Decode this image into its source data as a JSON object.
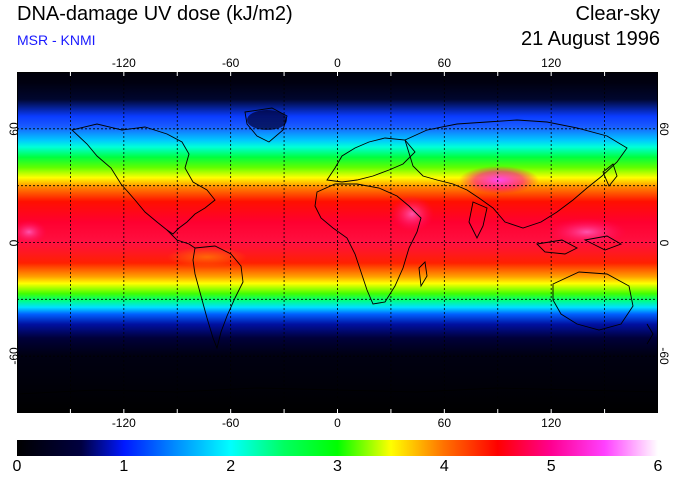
{
  "header": {
    "title": "DNA-damage UV dose (kJ/m2)",
    "subtitle": "MSR - KNMI",
    "condition": "Clear-sky",
    "date": "21 August 1996"
  },
  "map": {
    "projection": "equirectangular",
    "lon_range": [
      -180,
      180
    ],
    "lat_range": [
      -90,
      90
    ],
    "grid_spacing_lon": 30,
    "grid_spacing_lat": 30,
    "lon_tick_labels": [
      "-120",
      "-60",
      "0",
      "60",
      "120"
    ],
    "lat_tick_labels": [
      "60",
      "0",
      "-60"
    ],
    "colors": {
      "background": "#000010",
      "coastline": "#000000",
      "gridline": "#000000"
    }
  },
  "colorbar": {
    "min": 0,
    "max": 6,
    "tick_labels": [
      "0",
      "1",
      "2",
      "3",
      "4",
      "5",
      "6"
    ],
    "stops": [
      {
        "value": 0.0,
        "color": "#000000"
      },
      {
        "value": 0.6,
        "color": "#000040"
      },
      {
        "value": 1.0,
        "color": "#0018ff"
      },
      {
        "value": 1.5,
        "color": "#0090ff"
      },
      {
        "value": 2.0,
        "color": "#00ffff"
      },
      {
        "value": 2.5,
        "color": "#00ff60"
      },
      {
        "value": 3.0,
        "color": "#00ff00"
      },
      {
        "value": 3.5,
        "color": "#ffff00"
      },
      {
        "value": 4.0,
        "color": "#ff7000"
      },
      {
        "value": 4.5,
        "color": "#ff0000"
      },
      {
        "value": 5.0,
        "color": "#ff0090"
      },
      {
        "value": 5.5,
        "color": "#ff40ff"
      },
      {
        "value": 6.0,
        "color": "#ffffff"
      }
    ]
  }
}
